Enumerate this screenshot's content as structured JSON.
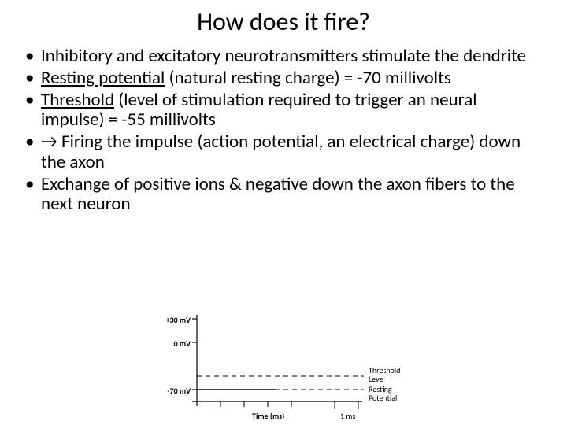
{
  "title": "How does it fire?",
  "bullets": [
    {
      "pre": "",
      "u": "",
      "post": "Inhibitory and excitatory neurotransmitters stimulate the dendrite"
    },
    {
      "pre": "",
      "u": "Resting potential",
      "post": " (natural resting charge) = -70 millivolts"
    },
    {
      "pre": "",
      "u": "Threshold",
      "post": " (level of stimulation required to trigger an neural impulse) = -55 millivolts"
    },
    {
      "pre": " → Firing the impulse (action potential, an electrical charge) down the axon",
      "u": "",
      "post": ""
    },
    {
      "pre": "Exchange of positive ions & negative down the axon fibers to the next neuron",
      "u": "",
      "post": ""
    }
  ],
  "chart": {
    "type": "line",
    "title": "",
    "xlabel": "Time (ms)",
    "x_tick_label": "1 ms",
    "y_ticks": [
      "+30 mV",
      "0 mV",
      "-70 mV"
    ],
    "right_labels": {
      "threshold": "Threshold\nLevel",
      "resting": "Resting\nPotential"
    },
    "colors": {
      "axis": "#000000",
      "curve": "#000000",
      "dash": "#000000",
      "background": "#ffffff"
    },
    "axis": {
      "x0": 50,
      "y_top": 0,
      "y_bottom": 110,
      "y_pos_30": 5,
      "y_pos_0": 35,
      "y_pos_m55": 78,
      "y_pos_m70": 95,
      "x_end": 260
    },
    "line_width": 1.2
  }
}
